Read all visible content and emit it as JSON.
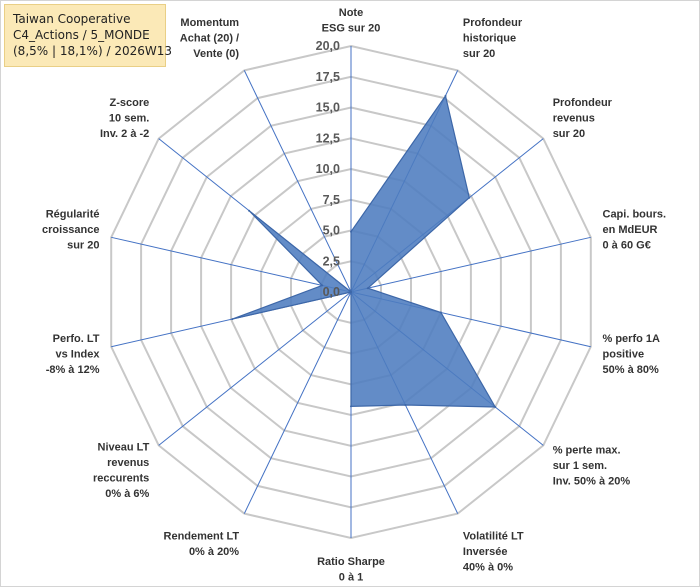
{
  "title": {
    "line1": "Taiwan Cooperative",
    "line2": "C4_Actions / 5_MONDE",
    "line3": "(8,5% | 18,1%) / 2026W13"
  },
  "chart_data": {
    "type": "radar",
    "range": [
      0,
      20
    ],
    "ticks": [
      "0,0",
      "2,5",
      "5,0",
      "7,5",
      "10,0",
      "12,5",
      "15,0",
      "17,5",
      "20,0"
    ],
    "grid": true,
    "colors": {
      "fill": "#4d7cbf",
      "stroke": "#3d67a8",
      "grid": "#c8c8c8",
      "spokes": "#4472c4"
    },
    "axes": [
      {
        "label": [
          "Note",
          "ESG sur 20"
        ],
        "value": 4.9
      },
      {
        "label": [
          "Profondeur",
          "historique",
          "sur 20"
        ],
        "value": 17.7
      },
      {
        "label": [
          "Profondeur",
          "revenus",
          "sur 20"
        ],
        "value": 12.3
      },
      {
        "label": [
          "Capi. bours.",
          "en MdEUR",
          "0 à 60 G€"
        ],
        "value": 1.4
      },
      {
        "label": [
          "% perfo 1A",
          "positive",
          "50% à 80%"
        ],
        "value": 7.5
      },
      {
        "label": [
          "% perte max.",
          "sur 1 sem.",
          "Inv. 50% à 20%"
        ],
        "value": 15.0
      },
      {
        "label": [
          "Volatilité LT",
          "Inversée",
          "40% à 0%"
        ],
        "value": 10.2
      },
      {
        "label": [
          "Ratio Sharpe",
          "0 à 1"
        ],
        "value": 9.3
      },
      {
        "label": [
          "Rendement LT",
          "0% à 20%"
        ],
        "value": 0.0
      },
      {
        "label": [
          "Niveau LT",
          "revenus",
          "reccurents",
          "0% à 6%"
        ],
        "value": 0.0
      },
      {
        "label": [
          "Perfo. LT",
          "vs Index",
          "-8% à 12%"
        ],
        "value": 9.9
      },
      {
        "label": [
          "Régularité",
          "croissance",
          "sur 20"
        ],
        "value": 2.4
      },
      {
        "label": [
          "Z-score",
          "10 sem.",
          "Inv. 2 à -2"
        ],
        "value": 10.6
      },
      {
        "label": [
          "Momentum",
          "Achat (20) /",
          "Vente (0)"
        ],
        "value": 0.0
      }
    ]
  }
}
